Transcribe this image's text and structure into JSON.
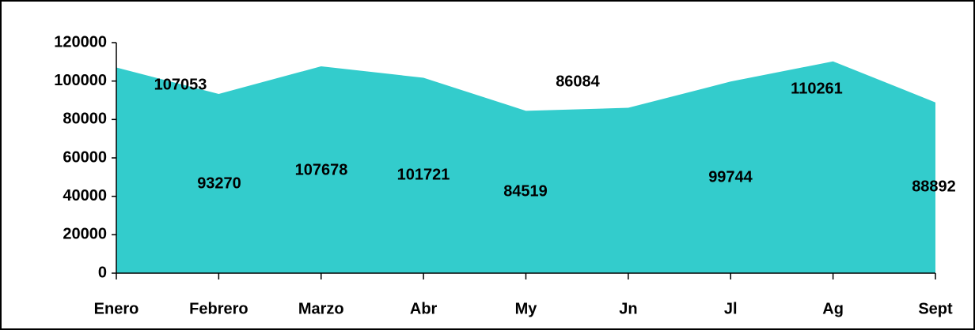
{
  "chart_data": {
    "type": "area",
    "categories": [
      "Enero",
      "Febrero",
      "Marzo",
      "Abr",
      "My",
      "Jn",
      "Jl",
      "Ag",
      "Sept"
    ],
    "values": [
      107053,
      93270,
      107678,
      101721,
      84519,
      86084,
      99744,
      110261,
      88892
    ],
    "color": "#33cccc",
    "ylim": [
      0,
      120000
    ],
    "yticks": [
      0,
      20000,
      40000,
      60000,
      80000,
      100000,
      120000
    ],
    "grid": false
  }
}
